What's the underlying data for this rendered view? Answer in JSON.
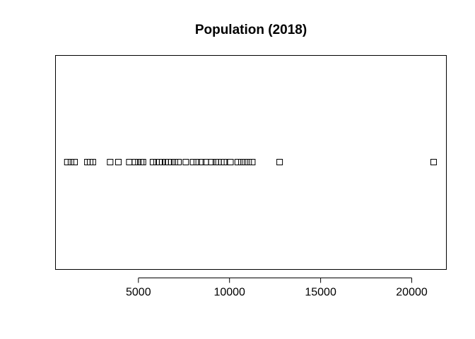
{
  "chart_data": {
    "type": "scatter",
    "title": "Population (2018)",
    "xlabel": "",
    "ylabel": "",
    "xlim": [
      450,
      21900
    ],
    "x_ticks": [
      5000,
      10000,
      15000,
      20000
    ],
    "x_tick_labels": [
      "5000",
      "10000",
      "15000",
      "20000"
    ],
    "grid": false,
    "marker": "open-square",
    "series": [
      {
        "values": [
          1100,
          1300,
          1500,
          2200,
          2350,
          2500,
          3450,
          3900,
          4500,
          4800,
          5000,
          5150,
          5250,
          5800,
          6000,
          6150,
          6300,
          6500,
          6650,
          6800,
          7000,
          7200,
          7600,
          8000,
          8200,
          8450,
          8700,
          9000,
          9250,
          9400,
          9550,
          9700,
          10050,
          10450,
          10650,
          10850,
          11050,
          11250,
          12750,
          21200
        ]
      }
    ]
  }
}
